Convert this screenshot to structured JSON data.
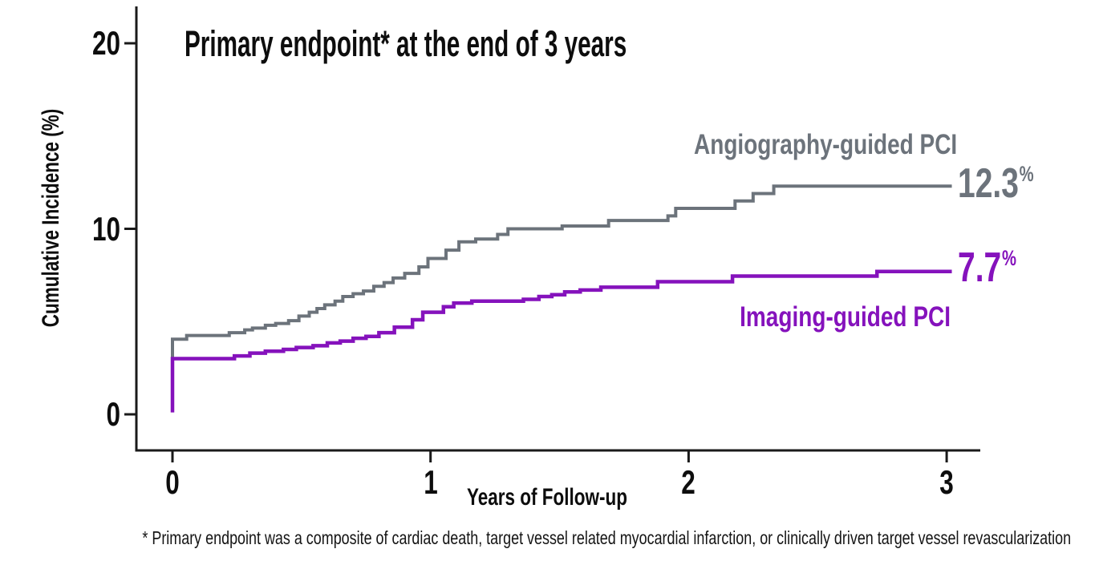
{
  "figure": {
    "background": "#ffffff",
    "axis_color": "#1a1a1a"
  },
  "chart_data": {
    "type": "line",
    "subtype": "kaplan-meier-step-curves",
    "title": "Primary endpoint* at the end of 3 years",
    "xlabel": "Years of Follow-up",
    "ylabel": "Cumulative Incidence (%)",
    "xlim": [
      0,
      3.05
    ],
    "ylim": [
      0,
      22
    ],
    "x_ticks": [
      0,
      1,
      2,
      3
    ],
    "y_ticks": [
      0,
      10,
      20
    ],
    "grid": "off",
    "legend_position": "end-of-line labels, right side",
    "footnote": "*  Primary endpoint was a composite of cardiac death, target vessel related myocardial infarction, or clinically driven target vessel revascularization",
    "percent_sign": "%",
    "series": [
      {
        "name": "Angiography-guided PCI",
        "color": "#6C737B",
        "final_value_label": "12.3",
        "unit": "%",
        "start_value": 0.15,
        "steps": [
          [
            0.0,
            4.05
          ],
          [
            0.055,
            4.25
          ],
          [
            0.22,
            4.4
          ],
          [
            0.28,
            4.55
          ],
          [
            0.31,
            4.65
          ],
          [
            0.36,
            4.8
          ],
          [
            0.4,
            4.9
          ],
          [
            0.45,
            5.05
          ],
          [
            0.49,
            5.3
          ],
          [
            0.53,
            5.5
          ],
          [
            0.56,
            5.7
          ],
          [
            0.59,
            5.9
          ],
          [
            0.63,
            6.1
          ],
          [
            0.66,
            6.35
          ],
          [
            0.7,
            6.5
          ],
          [
            0.74,
            6.65
          ],
          [
            0.78,
            6.9
          ],
          [
            0.82,
            7.1
          ],
          [
            0.855,
            7.35
          ],
          [
            0.9,
            7.6
          ],
          [
            0.955,
            7.95
          ],
          [
            0.99,
            8.4
          ],
          [
            1.06,
            8.85
          ],
          [
            1.11,
            9.3
          ],
          [
            1.175,
            9.45
          ],
          [
            1.26,
            9.7
          ],
          [
            1.3,
            10.0
          ],
          [
            1.51,
            10.15
          ],
          [
            1.69,
            10.45
          ],
          [
            1.92,
            10.7
          ],
          [
            1.95,
            11.1
          ],
          [
            2.18,
            11.5
          ],
          [
            2.25,
            11.9
          ],
          [
            2.33,
            12.3
          ],
          [
            3.02,
            12.3
          ]
        ]
      },
      {
        "name": "Imaging-guided PCI",
        "color": "#8512BC",
        "final_value_label": "7.7",
        "unit": "%",
        "start_value": 0.1,
        "steps": [
          [
            0.0,
            3.0
          ],
          [
            0.24,
            3.15
          ],
          [
            0.3,
            3.3
          ],
          [
            0.36,
            3.4
          ],
          [
            0.43,
            3.5
          ],
          [
            0.48,
            3.6
          ],
          [
            0.545,
            3.7
          ],
          [
            0.6,
            3.85
          ],
          [
            0.65,
            3.95
          ],
          [
            0.7,
            4.1
          ],
          [
            0.75,
            4.2
          ],
          [
            0.8,
            4.4
          ],
          [
            0.86,
            4.7
          ],
          [
            0.93,
            5.1
          ],
          [
            0.97,
            5.5
          ],
          [
            1.05,
            5.8
          ],
          [
            1.09,
            6.0
          ],
          [
            1.16,
            6.1
          ],
          [
            1.36,
            6.2
          ],
          [
            1.42,
            6.35
          ],
          [
            1.47,
            6.45
          ],
          [
            1.52,
            6.6
          ],
          [
            1.58,
            6.7
          ],
          [
            1.66,
            6.85
          ],
          [
            1.88,
            7.15
          ],
          [
            2.17,
            7.45
          ],
          [
            2.73,
            7.7
          ],
          [
            3.02,
            7.7
          ]
        ]
      }
    ]
  }
}
